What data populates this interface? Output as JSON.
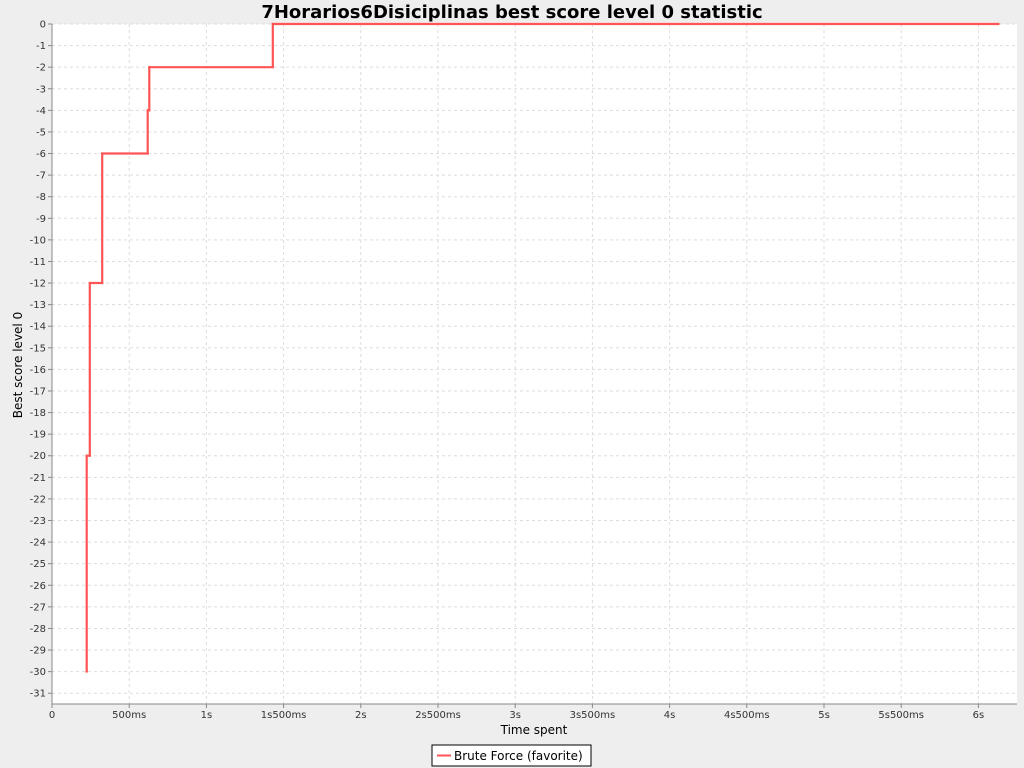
{
  "chart_data": {
    "type": "line",
    "title": "7Horarios6Disiciplinas best score level 0 statistic",
    "xlabel": "Time spent",
    "ylabel": "Best score level 0",
    "x_unit": "ms",
    "xlim": [
      0,
      6250
    ],
    "ylim": [
      -31.5,
      0
    ],
    "x_ticks": [
      {
        "value": 0,
        "label": "0"
      },
      {
        "value": 500,
        "label": "500ms"
      },
      {
        "value": 1000,
        "label": "1s"
      },
      {
        "value": 1500,
        "label": "1s500ms"
      },
      {
        "value": 2000,
        "label": "2s"
      },
      {
        "value": 2500,
        "label": "2s500ms"
      },
      {
        "value": 3000,
        "label": "3s"
      },
      {
        "value": 3500,
        "label": "3s500ms"
      },
      {
        "value": 4000,
        "label": "4s"
      },
      {
        "value": 4500,
        "label": "4s500ms"
      },
      {
        "value": 5000,
        "label": "5s"
      },
      {
        "value": 5500,
        "label": "5s500ms"
      },
      {
        "value": 6000,
        "label": "6s"
      }
    ],
    "y_ticks": [
      0,
      -1,
      -2,
      -3,
      -4,
      -5,
      -6,
      -7,
      -8,
      -9,
      -10,
      -11,
      -12,
      -13,
      -14,
      -15,
      -16,
      -17,
      -18,
      -19,
      -20,
      -21,
      -22,
      -23,
      -24,
      -25,
      -26,
      -27,
      -28,
      -29,
      -30,
      -31
    ],
    "grid": true,
    "legend_position": "bottom",
    "step": true,
    "series": [
      {
        "name": "Brute Force (favorite)",
        "color": "#ff5555",
        "points": [
          {
            "x": 225,
            "y": -30
          },
          {
            "x": 225,
            "y": -20
          },
          {
            "x": 245,
            "y": -20
          },
          {
            "x": 245,
            "y": -14
          },
          {
            "x": 245,
            "y": -12
          },
          {
            "x": 325,
            "y": -12
          },
          {
            "x": 325,
            "y": -8
          },
          {
            "x": 325,
            "y": -6
          },
          {
            "x": 620,
            "y": -6
          },
          {
            "x": 620,
            "y": -4
          },
          {
            "x": 630,
            "y": -4
          },
          {
            "x": 630,
            "y": -2
          },
          {
            "x": 1430,
            "y": -2
          },
          {
            "x": 1430,
            "y": 0
          },
          {
            "x": 6130,
            "y": 0
          }
        ]
      }
    ]
  }
}
